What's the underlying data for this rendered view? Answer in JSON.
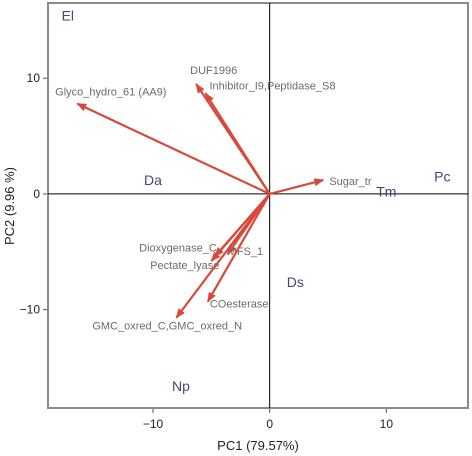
{
  "chart_data": {
    "type": "scatter",
    "subtype": "biplot",
    "title": "",
    "xlabel": "PC1 (79.57%)",
    "ylabel": "PC2 (9.96 %)",
    "xlim": [
      -19,
      17
    ],
    "ylim": [
      -18.5,
      16.5
    ],
    "xticks": [
      -10,
      0,
      10
    ],
    "yticks": [
      -10,
      0,
      10
    ],
    "xtick_labels": [
      "−10",
      "0",
      "10"
    ],
    "ytick_labels": [
      "−10",
      "0",
      "10"
    ],
    "grid": false,
    "reference_lines": {
      "x": 0,
      "y": 0
    },
    "colors": {
      "loadings": "#d9483a",
      "loading_labels": "#6b6b6b",
      "scores": "#45457a",
      "frame": "#8a8a8a",
      "reference_lines": "#000000"
    },
    "loadings": [
      {
        "label": "Glyco_hydro_61 (AA9)",
        "x": -16.5,
        "y": 7.8
      },
      {
        "label": "DUF1996",
        "x": -6.3,
        "y": 9.5
      },
      {
        "label": "Inhibitor_I9,Peptidase_S8",
        "x": -5.5,
        "y": 8.7
      },
      {
        "label": "Sugar_tr",
        "x": 4.6,
        "y": 1.2
      },
      {
        "label": "Dioxygenase_C",
        "x": -4.7,
        "y": -5.4
      },
      {
        "label": "Pectate_lyase",
        "x": -5.0,
        "y": -5.8
      },
      {
        "label": "MFS_1",
        "x": -3.6,
        "y": -5.2
      },
      {
        "label": "COesterase",
        "x": -5.3,
        "y": -9.3
      },
      {
        "label": "GMC_oxred_C,GMC_oxred_N",
        "x": -8.0,
        "y": -10.7
      }
    ],
    "scores": [
      {
        "label": "El",
        "x": -17.3,
        "y": 15.4
      },
      {
        "label": "Pc",
        "x": 14.8,
        "y": 1.5
      },
      {
        "label": "Tm",
        "x": 10.0,
        "y": 0.2
      },
      {
        "label": "Da",
        "x": -10.0,
        "y": 1.2
      },
      {
        "label": "Ds",
        "x": 2.2,
        "y": -7.6
      },
      {
        "label": "Np",
        "x": -7.6,
        "y": -16.6
      }
    ]
  }
}
